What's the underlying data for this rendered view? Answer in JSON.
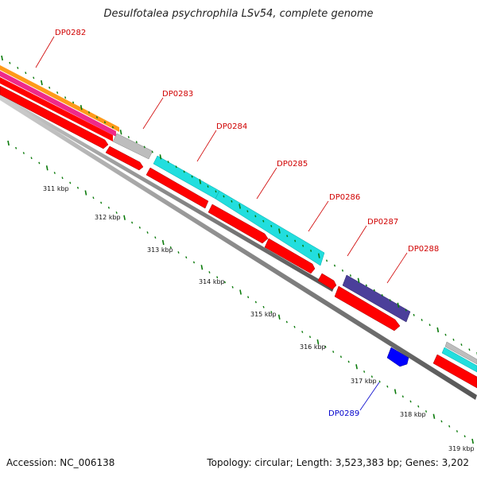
{
  "title": "Desulfotalea psychrophila LSv54, complete genome",
  "footer": {
    "accession": "Accession: NC_006138",
    "summary": "Topology: circular; Length: 3,523,383 bp; Genes: 3,202"
  },
  "colors": {
    "backbone": "#8a8a8a",
    "red_feature": "#ff0000",
    "cyan_feature": "#22dede",
    "grey_feature": "#bdbdbd",
    "navy_feature": "#4b3f9a",
    "blue_feature": "#0000ff",
    "orange_band": "#ff9a1a",
    "magenta_band": "#ee2a8a",
    "tick": "#0a7a0a",
    "label_red": "#d00000",
    "label_blue": "#0000cc"
  },
  "gene_labels": [
    "DP0282",
    "DP0283",
    "DP0284",
    "DP0285",
    "DP0286",
    "DP0287",
    "DP0288",
    "DP0289"
  ],
  "kbp_labels": [
    "311 kbp",
    "312 kbp",
    "313 kbp",
    "314 kbp",
    "315 kbp",
    "316 kbp",
    "317 kbp",
    "318 kbp",
    "319 kbp"
  ]
}
